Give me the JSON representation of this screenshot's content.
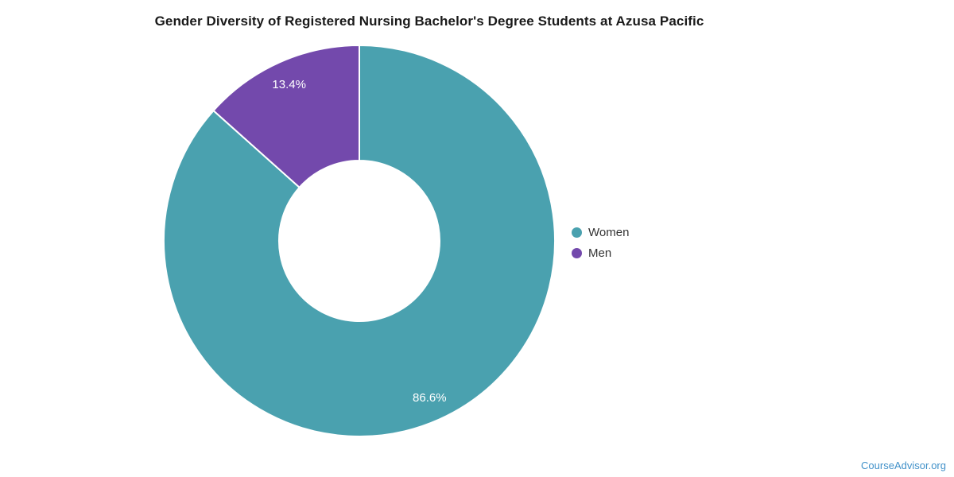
{
  "title": "Gender Diversity of Registered Nursing Bachelor's Degree Students at Azusa Pacific",
  "watermark": {
    "text": "CourseAdvisor.org",
    "color": "#4191c9"
  },
  "chart_data": {
    "type": "pie",
    "subtype": "donut",
    "title": "Gender Diversity of Registered Nursing Bachelor's Degree Students at Azusa Pacific",
    "categories": [
      "Women",
      "Men"
    ],
    "values": [
      86.6,
      13.4
    ],
    "data_labels": [
      "86.6%",
      "13.4%"
    ],
    "colors": [
      "#4aa1af",
      "#7349ac"
    ],
    "data_label_color": "#ffffff",
    "slice_border_color": "#ffffff",
    "legend_position": "right",
    "start_angle_deg": 0,
    "direction": "clockwise",
    "inner_radius_ratio": 0.41,
    "units": "%",
    "total": 100
  },
  "legend": {
    "items": [
      {
        "label": "Women",
        "color": "#4aa1af"
      },
      {
        "label": "Men",
        "color": "#7349ac"
      }
    ]
  }
}
